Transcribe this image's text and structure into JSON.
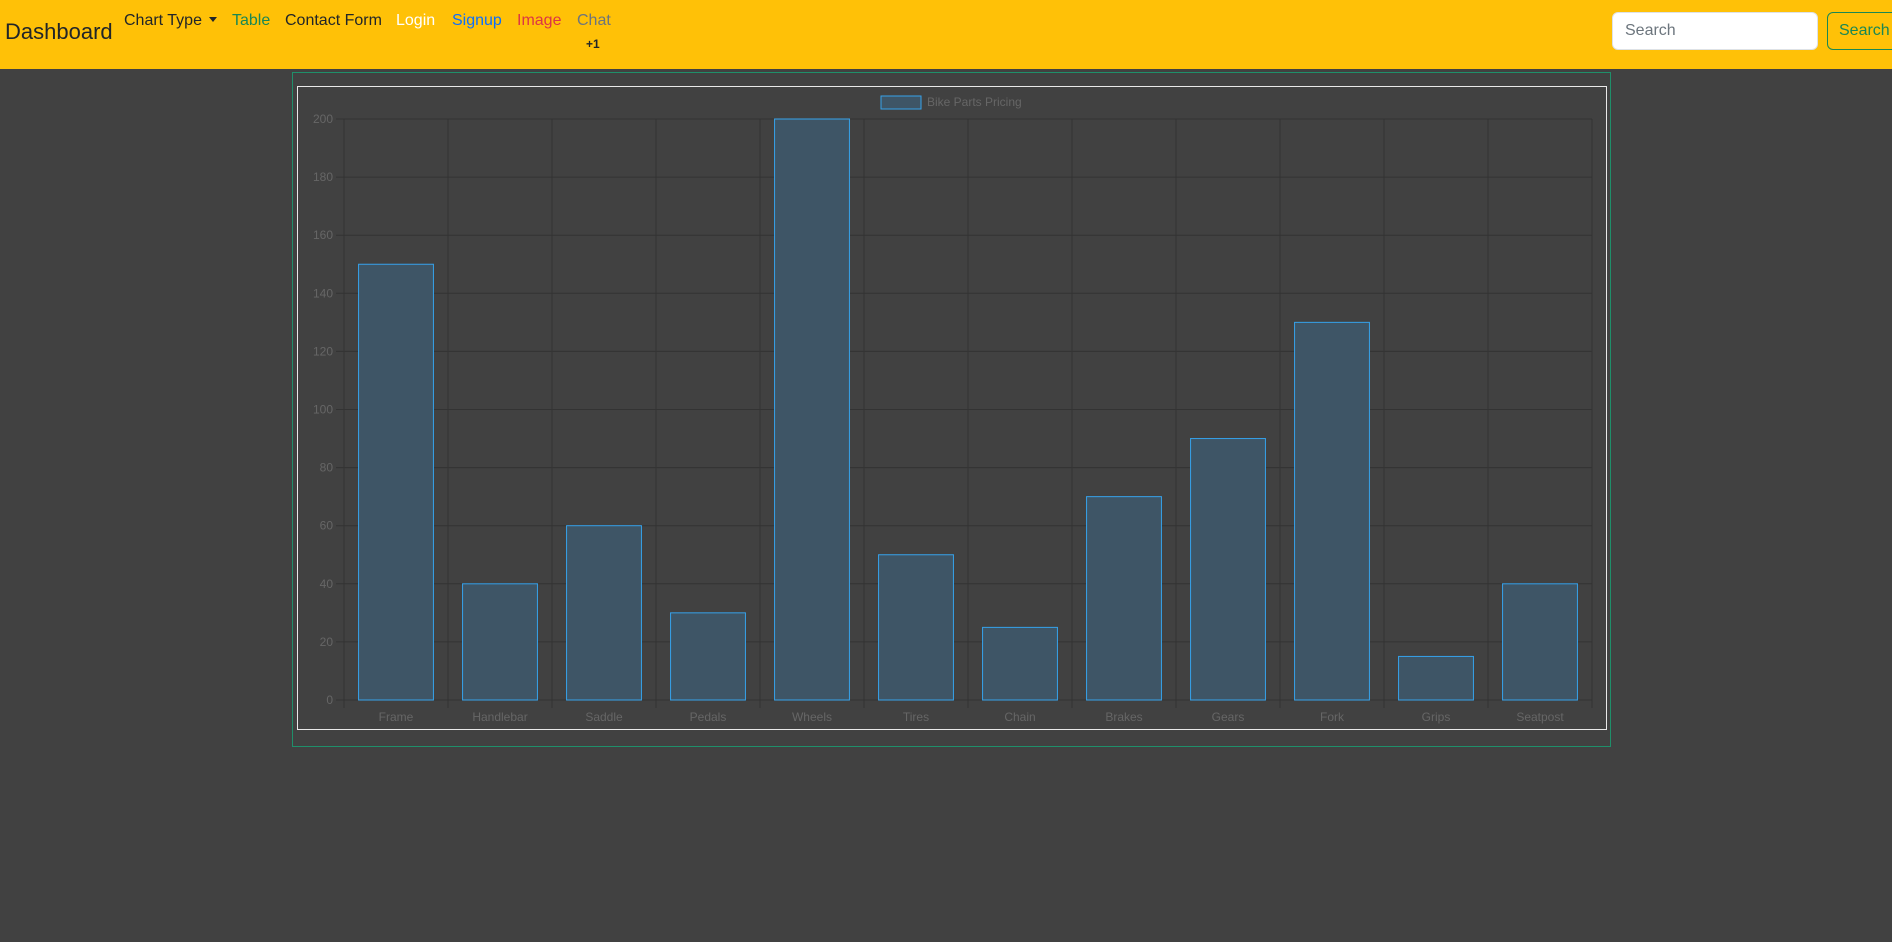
{
  "navbar": {
    "brand": "Dashboard",
    "items": [
      {
        "label": "Chart Type",
        "color": "#212529",
        "dropdown": true
      },
      {
        "label": "Table",
        "color": "#198754"
      },
      {
        "label": "Contact Form",
        "color": "#212529"
      },
      {
        "label": "Login",
        "color": "#ffffff"
      },
      {
        "label": "Signup",
        "color": "#0d6efd"
      },
      {
        "label": "Image",
        "color": "#dc3545"
      },
      {
        "label": "Chat",
        "color": "#6c757d"
      }
    ],
    "chat_badge": "+1",
    "search": {
      "placeholder": "Search",
      "button_label": "Search"
    }
  },
  "chart_data": {
    "type": "bar",
    "categories": [
      "Frame",
      "Handlebar",
      "Saddle",
      "Pedals",
      "Wheels",
      "Tires",
      "Chain",
      "Brakes",
      "Gears",
      "Fork",
      "Grips",
      "Seatpost"
    ],
    "series": [
      {
        "name": "Bike Parts Pricing",
        "values": [
          150,
          40,
          60,
          30,
          200,
          50,
          25,
          70,
          90,
          130,
          15,
          40
        ]
      }
    ],
    "ylim": [
      0,
      200
    ],
    "yticks": [
      0,
      20,
      40,
      60,
      80,
      100,
      120,
      140,
      160,
      180,
      200
    ],
    "grid": true,
    "legend": "top-center",
    "colors": {
      "bar_fill": "#3e5566",
      "bar_stroke": "#36a2eb",
      "grid": "#333333",
      "tick_text": "#666666"
    }
  }
}
